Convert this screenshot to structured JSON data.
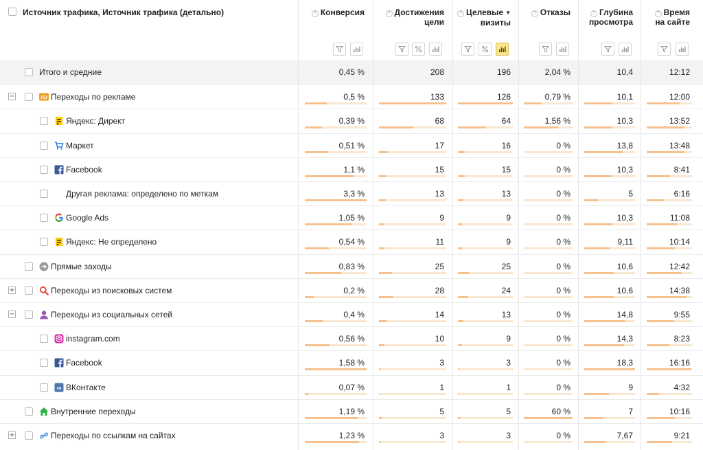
{
  "header": {
    "dimension_label": "Источник трафика, Источник трафика (детально)",
    "columns": [
      {
        "title_lines": [
          "Конверсия"
        ],
        "help_icon": "help-icon",
        "sorted": false
      },
      {
        "title_lines": [
          "Достижения",
          "цели"
        ],
        "help_icon": "help-icon",
        "sorted": false
      },
      {
        "title_lines": [
          "Целевые",
          "визиты"
        ],
        "help_icon": "help-icon",
        "sorted": true,
        "sort_glyph": "▼"
      },
      {
        "title_lines": [
          "Отказы"
        ],
        "help_icon": "help-icon",
        "sorted": false
      },
      {
        "title_lines": [
          "Глубина",
          "просмотра"
        ],
        "help_icon": "help-icon",
        "sorted": false
      },
      {
        "title_lines": [
          "Время",
          "на сайте"
        ],
        "help_icon": "help-icon",
        "sorted": false
      }
    ],
    "column_tools": [
      [
        "filter-icon",
        "chart-icon"
      ],
      [
        "filter-icon",
        "percent-icon",
        "chart-icon"
      ],
      [
        "filter-icon",
        "percent-icon",
        "chart-icon-active"
      ],
      [
        "filter-icon",
        "chart-icon"
      ],
      [
        "filter-icon",
        "chart-icon"
      ],
      [
        "filter-icon",
        "chart-icon"
      ]
    ]
  },
  "colors": {
    "bar_fill": "#f5c28f",
    "bar_track": "#fbe6d0",
    "total_row_bg": "#f3f3f3",
    "active_tool_bg": "#f8e48a"
  },
  "rows": [
    {
      "kind": "total",
      "level": 0,
      "label": "Итого и средние",
      "icon": "",
      "expander": "",
      "values": [
        "0,45 %",
        "208",
        "196",
        "2,04 %",
        "10,4",
        "12:12"
      ],
      "bars": null
    },
    {
      "kind": "group",
      "level": 0,
      "label": "Переходы по рекламе",
      "icon": "ad-icon",
      "expander": "−",
      "values": [
        "0,5 %",
        "133",
        "126",
        "0,79 %",
        "10,1",
        "12:00"
      ],
      "bars": [
        0.36,
        1.0,
        1.0,
        0.35,
        0.55,
        0.72
      ]
    },
    {
      "kind": "item",
      "level": 1,
      "label": "Яндекс: Директ",
      "icon": "yandex-direct-icon",
      "expander": "",
      "values": [
        "0,39 %",
        "68",
        "64",
        "1,56 %",
        "10,3",
        "13:52"
      ],
      "bars": [
        0.28,
        0.51,
        0.51,
        0.7,
        0.56,
        0.84
      ]
    },
    {
      "kind": "item",
      "level": 1,
      "label": "Маркет",
      "icon": "market-cart-icon",
      "expander": "",
      "values": [
        "0,51 %",
        "17",
        "16",
        "0 %",
        "13,8",
        "13:48"
      ],
      "bars": [
        0.37,
        0.13,
        0.13,
        0,
        0.75,
        0.83
      ]
    },
    {
      "kind": "item",
      "level": 1,
      "label": "Facebook",
      "icon": "facebook-icon",
      "expander": "",
      "values": [
        "1,1 %",
        "15",
        "15",
        "0 %",
        "10,3",
        "8:41"
      ],
      "bars": [
        0.79,
        0.11,
        0.12,
        0,
        0.56,
        0.52
      ]
    },
    {
      "kind": "item",
      "level": 1,
      "label": "Другая реклама: определено по меткам",
      "icon": "",
      "expander": "",
      "values": [
        "3,3 %",
        "13",
        "13",
        "0 %",
        "5",
        "6:16"
      ],
      "bars": [
        1.0,
        0.1,
        0.1,
        0,
        0.27,
        0.38
      ]
    },
    {
      "kind": "item",
      "level": 1,
      "label": "Google Ads",
      "icon": "google-icon",
      "expander": "",
      "values": [
        "1,05 %",
        "9",
        "9",
        "0 %",
        "10,3",
        "11:08"
      ],
      "bars": [
        0.75,
        0.07,
        0.07,
        0,
        0.56,
        0.67
      ]
    },
    {
      "kind": "item",
      "level": 1,
      "label": "Яндекс: Не определено",
      "icon": "yandex-direct-icon",
      "expander": "",
      "values": [
        "0,54 %",
        "11",
        "9",
        "0 %",
        "9,11",
        "10:14"
      ],
      "bars": [
        0.39,
        0.08,
        0.07,
        0,
        0.5,
        0.62
      ]
    },
    {
      "kind": "group",
      "level": 0,
      "label": "Прямые заходы",
      "icon": "direct-arrow-icon",
      "expander": "",
      "values": [
        "0,83 %",
        "25",
        "25",
        "0 %",
        "10,6",
        "12:42"
      ],
      "bars": [
        0.59,
        0.19,
        0.2,
        0,
        0.58,
        0.77
      ]
    },
    {
      "kind": "group",
      "level": 0,
      "label": "Переходы из поисковых систем",
      "icon": "search-magnifier-icon",
      "expander": "+",
      "values": [
        "0,2 %",
        "28",
        "24",
        "0 %",
        "10,6",
        "14:38"
      ],
      "bars": [
        0.14,
        0.21,
        0.19,
        0,
        0.58,
        0.88
      ]
    },
    {
      "kind": "group",
      "level": 0,
      "label": "Переходы из социальных сетей",
      "icon": "social-person-icon",
      "expander": "−",
      "values": [
        "0,4 %",
        "14",
        "13",
        "0 %",
        "14,8",
        "9:55"
      ],
      "bars": [
        0.29,
        0.11,
        0.1,
        0,
        0.8,
        0.6
      ]
    },
    {
      "kind": "item",
      "level": 1,
      "label": "instagram.com",
      "icon": "instagram-icon",
      "expander": "",
      "values": [
        "0,56 %",
        "10",
        "9",
        "0 %",
        "14,3",
        "8:23"
      ],
      "bars": [
        0.4,
        0.08,
        0.07,
        0,
        0.78,
        0.5
      ]
    },
    {
      "kind": "item",
      "level": 1,
      "label": "Facebook",
      "icon": "facebook-icon",
      "expander": "",
      "values": [
        "1,58 %",
        "3",
        "3",
        "0 %",
        "18,3",
        "16:16"
      ],
      "bars": [
        1.0,
        0.02,
        0.02,
        0,
        1.0,
        0.98
      ]
    },
    {
      "kind": "item",
      "level": 1,
      "label": "ВКонтакте",
      "icon": "vk-icon",
      "expander": "",
      "values": [
        "0,07 %",
        "1",
        "1",
        "0 %",
        "9",
        "4:32"
      ],
      "bars": [
        0.05,
        0.01,
        0.01,
        0,
        0.49,
        0.27
      ]
    },
    {
      "kind": "group",
      "level": 0,
      "label": "Внутренние переходы",
      "icon": "home-icon",
      "expander": "",
      "values": [
        "1,19 %",
        "5",
        "5",
        "60 %",
        "7",
        "10:16"
      ],
      "bars": [
        0.85,
        0.04,
        0.04,
        1.0,
        0.38,
        0.62
      ]
    },
    {
      "kind": "group",
      "level": 0,
      "label": "Переходы по ссылкам на сайтах",
      "icon": "link-icon",
      "expander": "+",
      "values": [
        "1,23 %",
        "3",
        "3",
        "0 %",
        "7,67",
        "9:21"
      ],
      "bars": [
        0.88,
        0.02,
        0.02,
        0,
        0.42,
        0.56
      ]
    }
  ]
}
